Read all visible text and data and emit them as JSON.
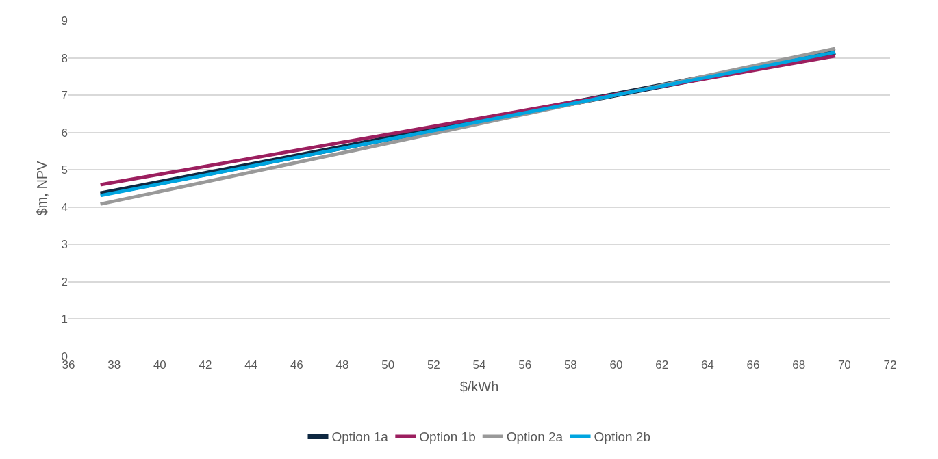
{
  "chart_data": {
    "type": "line",
    "xlabel": "$/kWh",
    "ylabel": "$m, NPV",
    "xlim": [
      36,
      72
    ],
    "xticks": [
      36,
      38,
      40,
      42,
      44,
      46,
      48,
      50,
      52,
      54,
      56,
      58,
      60,
      62,
      64,
      66,
      68,
      70,
      72
    ],
    "ylim": [
      0,
      9
    ],
    "yticks": [
      0,
      1,
      2,
      3,
      4,
      5,
      6,
      7,
      8,
      9
    ],
    "grid": "y",
    "legend": "bottom",
    "marker": "none",
    "line_style": "solid",
    "x": [
      37.4,
      69.6
    ],
    "series": [
      {
        "name": "Option 1a",
        "color": "#0e2841",
        "values": [
          4.35,
          8.15
        ]
      },
      {
        "name": "Option 1b",
        "color": "#9c1f5f",
        "values": [
          4.6,
          8.05
        ]
      },
      {
        "name": "Option 2a",
        "color": "#999999",
        "values": [
          4.08,
          8.25
        ]
      },
      {
        "name": "Option 2b",
        "color": "#00a5e0",
        "values": [
          4.31,
          8.15
        ]
      }
    ]
  }
}
